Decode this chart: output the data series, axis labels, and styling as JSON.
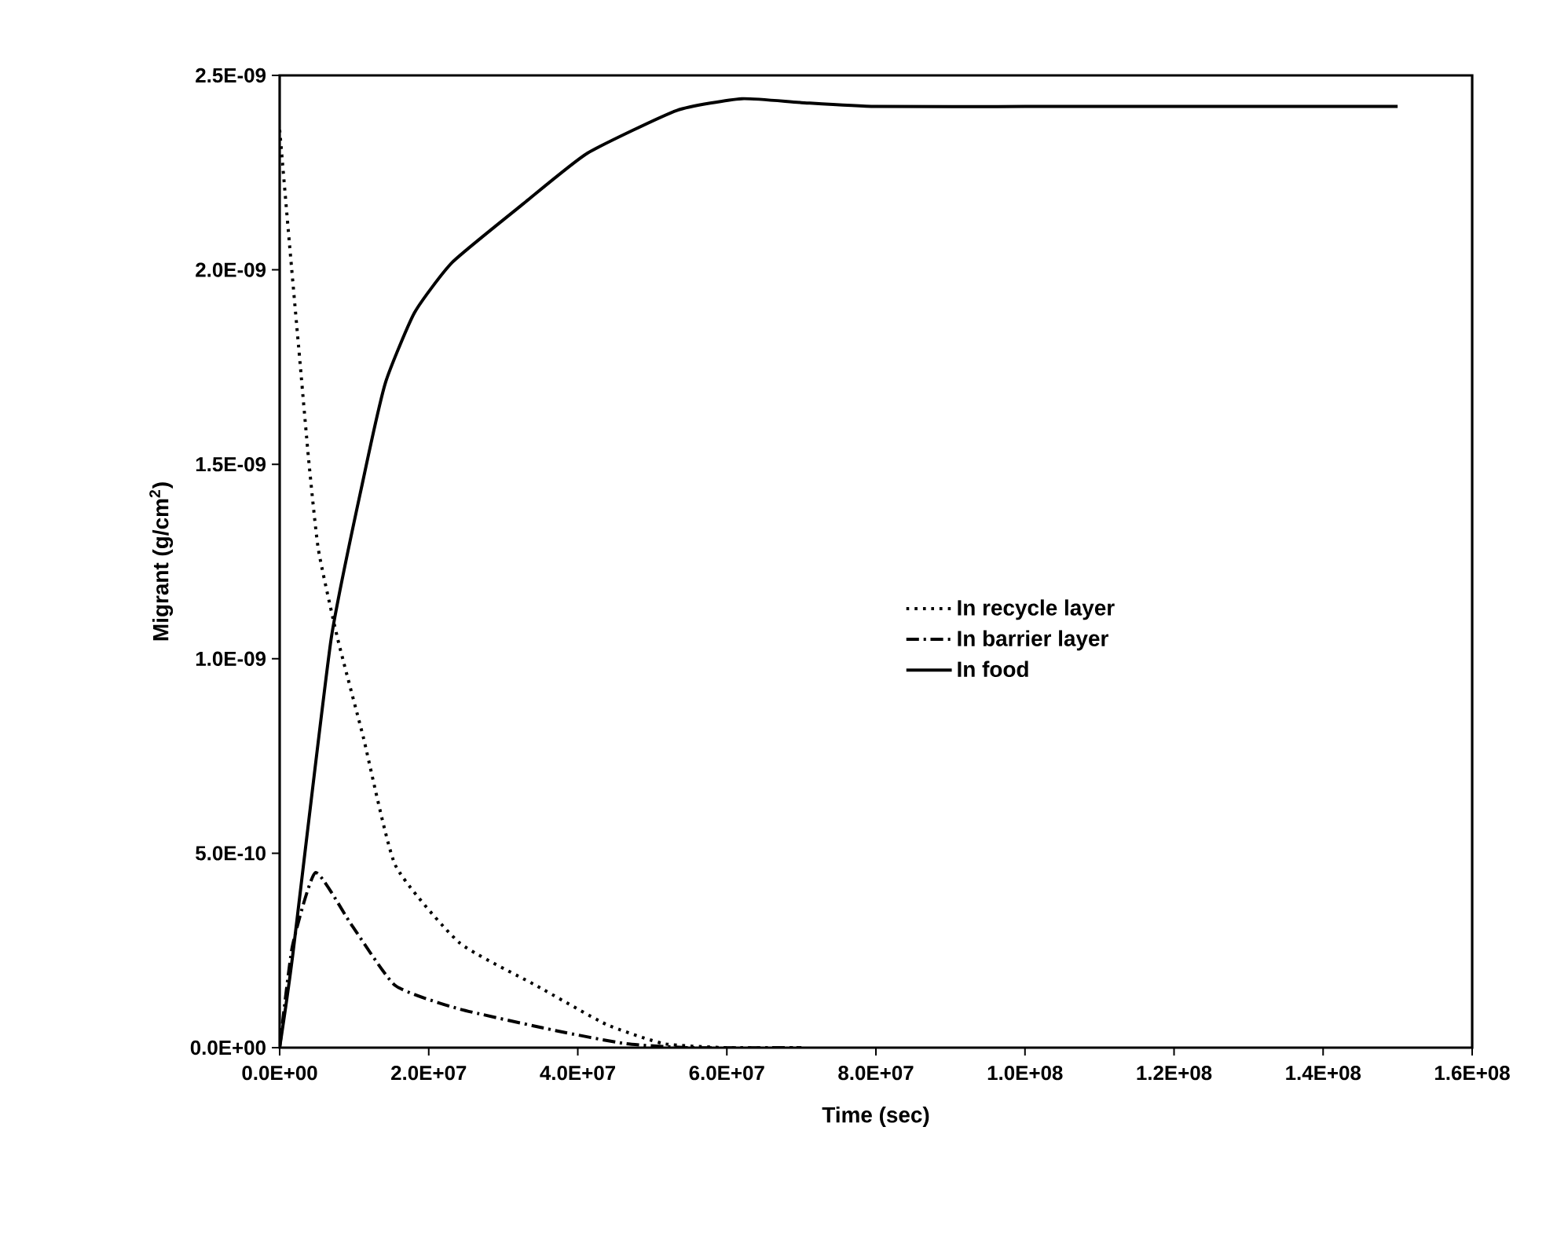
{
  "chart_data": {
    "type": "line",
    "xlabel": "Time (sec)",
    "ylabel": "Migrant (g/cm$^{2}$)",
    "xlim": [
      0,
      160000000
    ],
    "ylim": [
      0,
      2.5e-09
    ],
    "xticks": [
      {
        "value": 0,
        "label": "0.0E+00"
      },
      {
        "value": 20000000,
        "label": "2.0E+07"
      },
      {
        "value": 40000000,
        "label": "4.0E+07"
      },
      {
        "value": 60000000,
        "label": "6.0E+07"
      },
      {
        "value": 80000000,
        "label": "8.0E+07"
      },
      {
        "value": 100000000,
        "label": "1.0E+08"
      },
      {
        "value": 120000000,
        "label": "1.2E+08"
      },
      {
        "value": 140000000,
        "label": "1.4E+08"
      },
      {
        "value": 160000000,
        "label": "1.6E+08"
      }
    ],
    "yticks": [
      {
        "value": 0,
        "label": "0.0E+00"
      },
      {
        "value": 5e-10,
        "label": "5.0E-10"
      },
      {
        "value": 1e-09,
        "label": "1.0E-09"
      },
      {
        "value": 1.5e-09,
        "label": "1.5E-09"
      },
      {
        "value": 2e-09,
        "label": "2.0E-09"
      },
      {
        "value": 2.5e-09,
        "label": "2.5E-09"
      }
    ],
    "legend": "center",
    "grid": false,
    "marker": "none",
    "series": [
      {
        "name": "In recycle layer",
        "color": "#000000",
        "line_style": "dotted",
        "x": [
          0,
          1300000,
          2600000,
          3900000,
          5200000,
          7800000,
          11200000,
          15500000,
          24100000,
          34400000,
          43800000,
          51600000,
          60000000,
          70000000
        ],
        "values": [
          2.36e-09,
          2.07e-09,
          1.79e-09,
          1.51e-09,
          1.28e-09,
          1.05e-09,
          8e-10,
          4.7e-10,
          2.7e-10,
          1.6e-10,
          6e-11,
          1e-11,
          0,
          0
        ]
      },
      {
        "name": "In barrier layer",
        "color": "#000000",
        "line_style": "dashdot",
        "x": [
          0,
          1700000,
          4800000,
          9500000,
          15500000,
          24000000,
          37000000,
          46500000,
          55000000,
          70000000
        ],
        "values": [
          0,
          2.6e-10,
          4.5e-10,
          3.2e-10,
          1.6e-10,
          1e-10,
          4.4e-11,
          1e-11,
          0,
          0
        ]
      },
      {
        "name": "In food",
        "color": "#000000",
        "line_style": "solid",
        "x": [
          0,
          1700000,
          6900000,
          11200000,
          14200000,
          18100000,
          23200000,
          32700000,
          41300000,
          53300000,
          62000000,
          70000000,
          80000000,
          100000000,
          120000000,
          150000000
        ],
        "values": [
          0,
          2.3e-10,
          1.05e-09,
          1.46e-09,
          1.71e-09,
          1.89e-09,
          2.02e-09,
          2.17e-09,
          2.3e-09,
          2.41e-09,
          2.44e-09,
          2.43e-09,
          2.42e-09,
          2.42e-09,
          2.42e-09,
          2.42e-09
        ]
      }
    ]
  }
}
